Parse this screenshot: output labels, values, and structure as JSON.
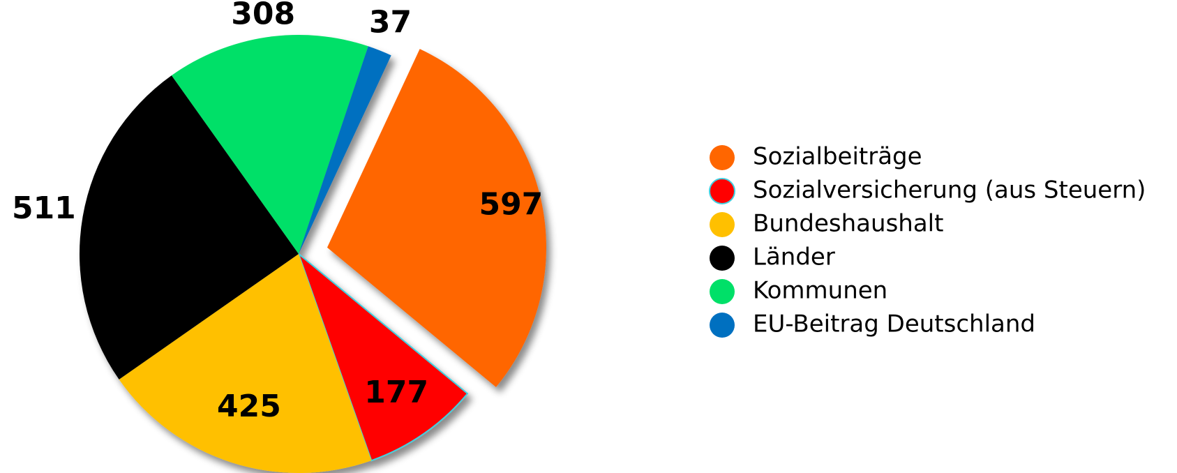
{
  "chart_data": {
    "type": "pie",
    "categories": [
      "Sozialbeiträge",
      "Sozialversicherung (aus Steuern)",
      "Bundeshaushalt",
      "Länder",
      "Kommunen",
      "EU-Beitrag Deutschland"
    ],
    "values": [
      597,
      177,
      425,
      511,
      308,
      37
    ],
    "colors": [
      "#ff6600",
      "#ff0000",
      "#ffc000",
      "#000000",
      "#00e068",
      "#0070c0"
    ],
    "exploded": [
      0
    ],
    "legend": "right"
  }
}
